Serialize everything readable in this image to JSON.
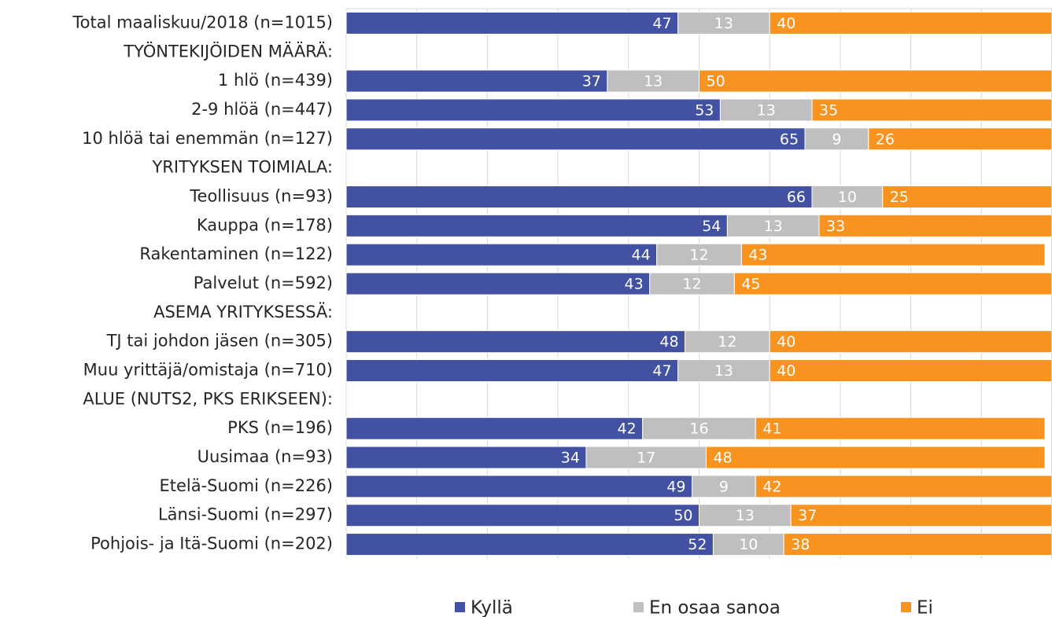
{
  "chart_data": {
    "type": "stacked-bar-horizontal",
    "categories": [
      "Total maaliskuu/2018 (n=1015)",
      "TYÖNTEKIJÖIDEN MÄÄRÄ:",
      "1 hlö (n=439)",
      "2-9 hlöä (n=447)",
      "10 hlöä tai enemmän (n=127)",
      "YRITYKSEN TOIMIALA:",
      "Teollisuus (n=93)",
      "Kauppa  (n=178)",
      "Rakentaminen (n=122)",
      "Palvelut  (n=592)",
      "ASEMA YRITYKSESSÄ:",
      "TJ tai johdon jäsen (n=305)",
      "Muu yrittäjä/omistaja (n=710)",
      "ALUE (NUTS2, PKS ERIKSEEN):",
      "PKS (n=196)",
      "Uusimaa (n=93)",
      "Etelä-Suomi (n=226)",
      "Länsi-Suomi (n=297)",
      "Pohjois- ja Itä-Suomi (n=202)"
    ],
    "series": [
      {
        "name": "Kyllä",
        "color": "#4351a2",
        "values": [
          47,
          null,
          37,
          53,
          65,
          null,
          66,
          54,
          44,
          43,
          null,
          48,
          47,
          null,
          42,
          34,
          49,
          50,
          52
        ]
      },
      {
        "name": "En osaa sanoa",
        "color": "#bfbfbf",
        "values": [
          13,
          null,
          13,
          13,
          9,
          null,
          10,
          13,
          12,
          12,
          null,
          12,
          13,
          null,
          16,
          17,
          9,
          13,
          10
        ]
      },
      {
        "name": "Ei",
        "color": "#f7931e",
        "values": [
          40,
          null,
          50,
          35,
          26,
          null,
          25,
          33,
          43,
          45,
          null,
          40,
          40,
          null,
          41,
          48,
          42,
          37,
          38
        ]
      }
    ],
    "xlim": [
      0,
      100
    ],
    "xticks": [
      0,
      10,
      20,
      30,
      40,
      50,
      60,
      70,
      80,
      90,
      100
    ],
    "grid": true,
    "legend": "bottom"
  }
}
